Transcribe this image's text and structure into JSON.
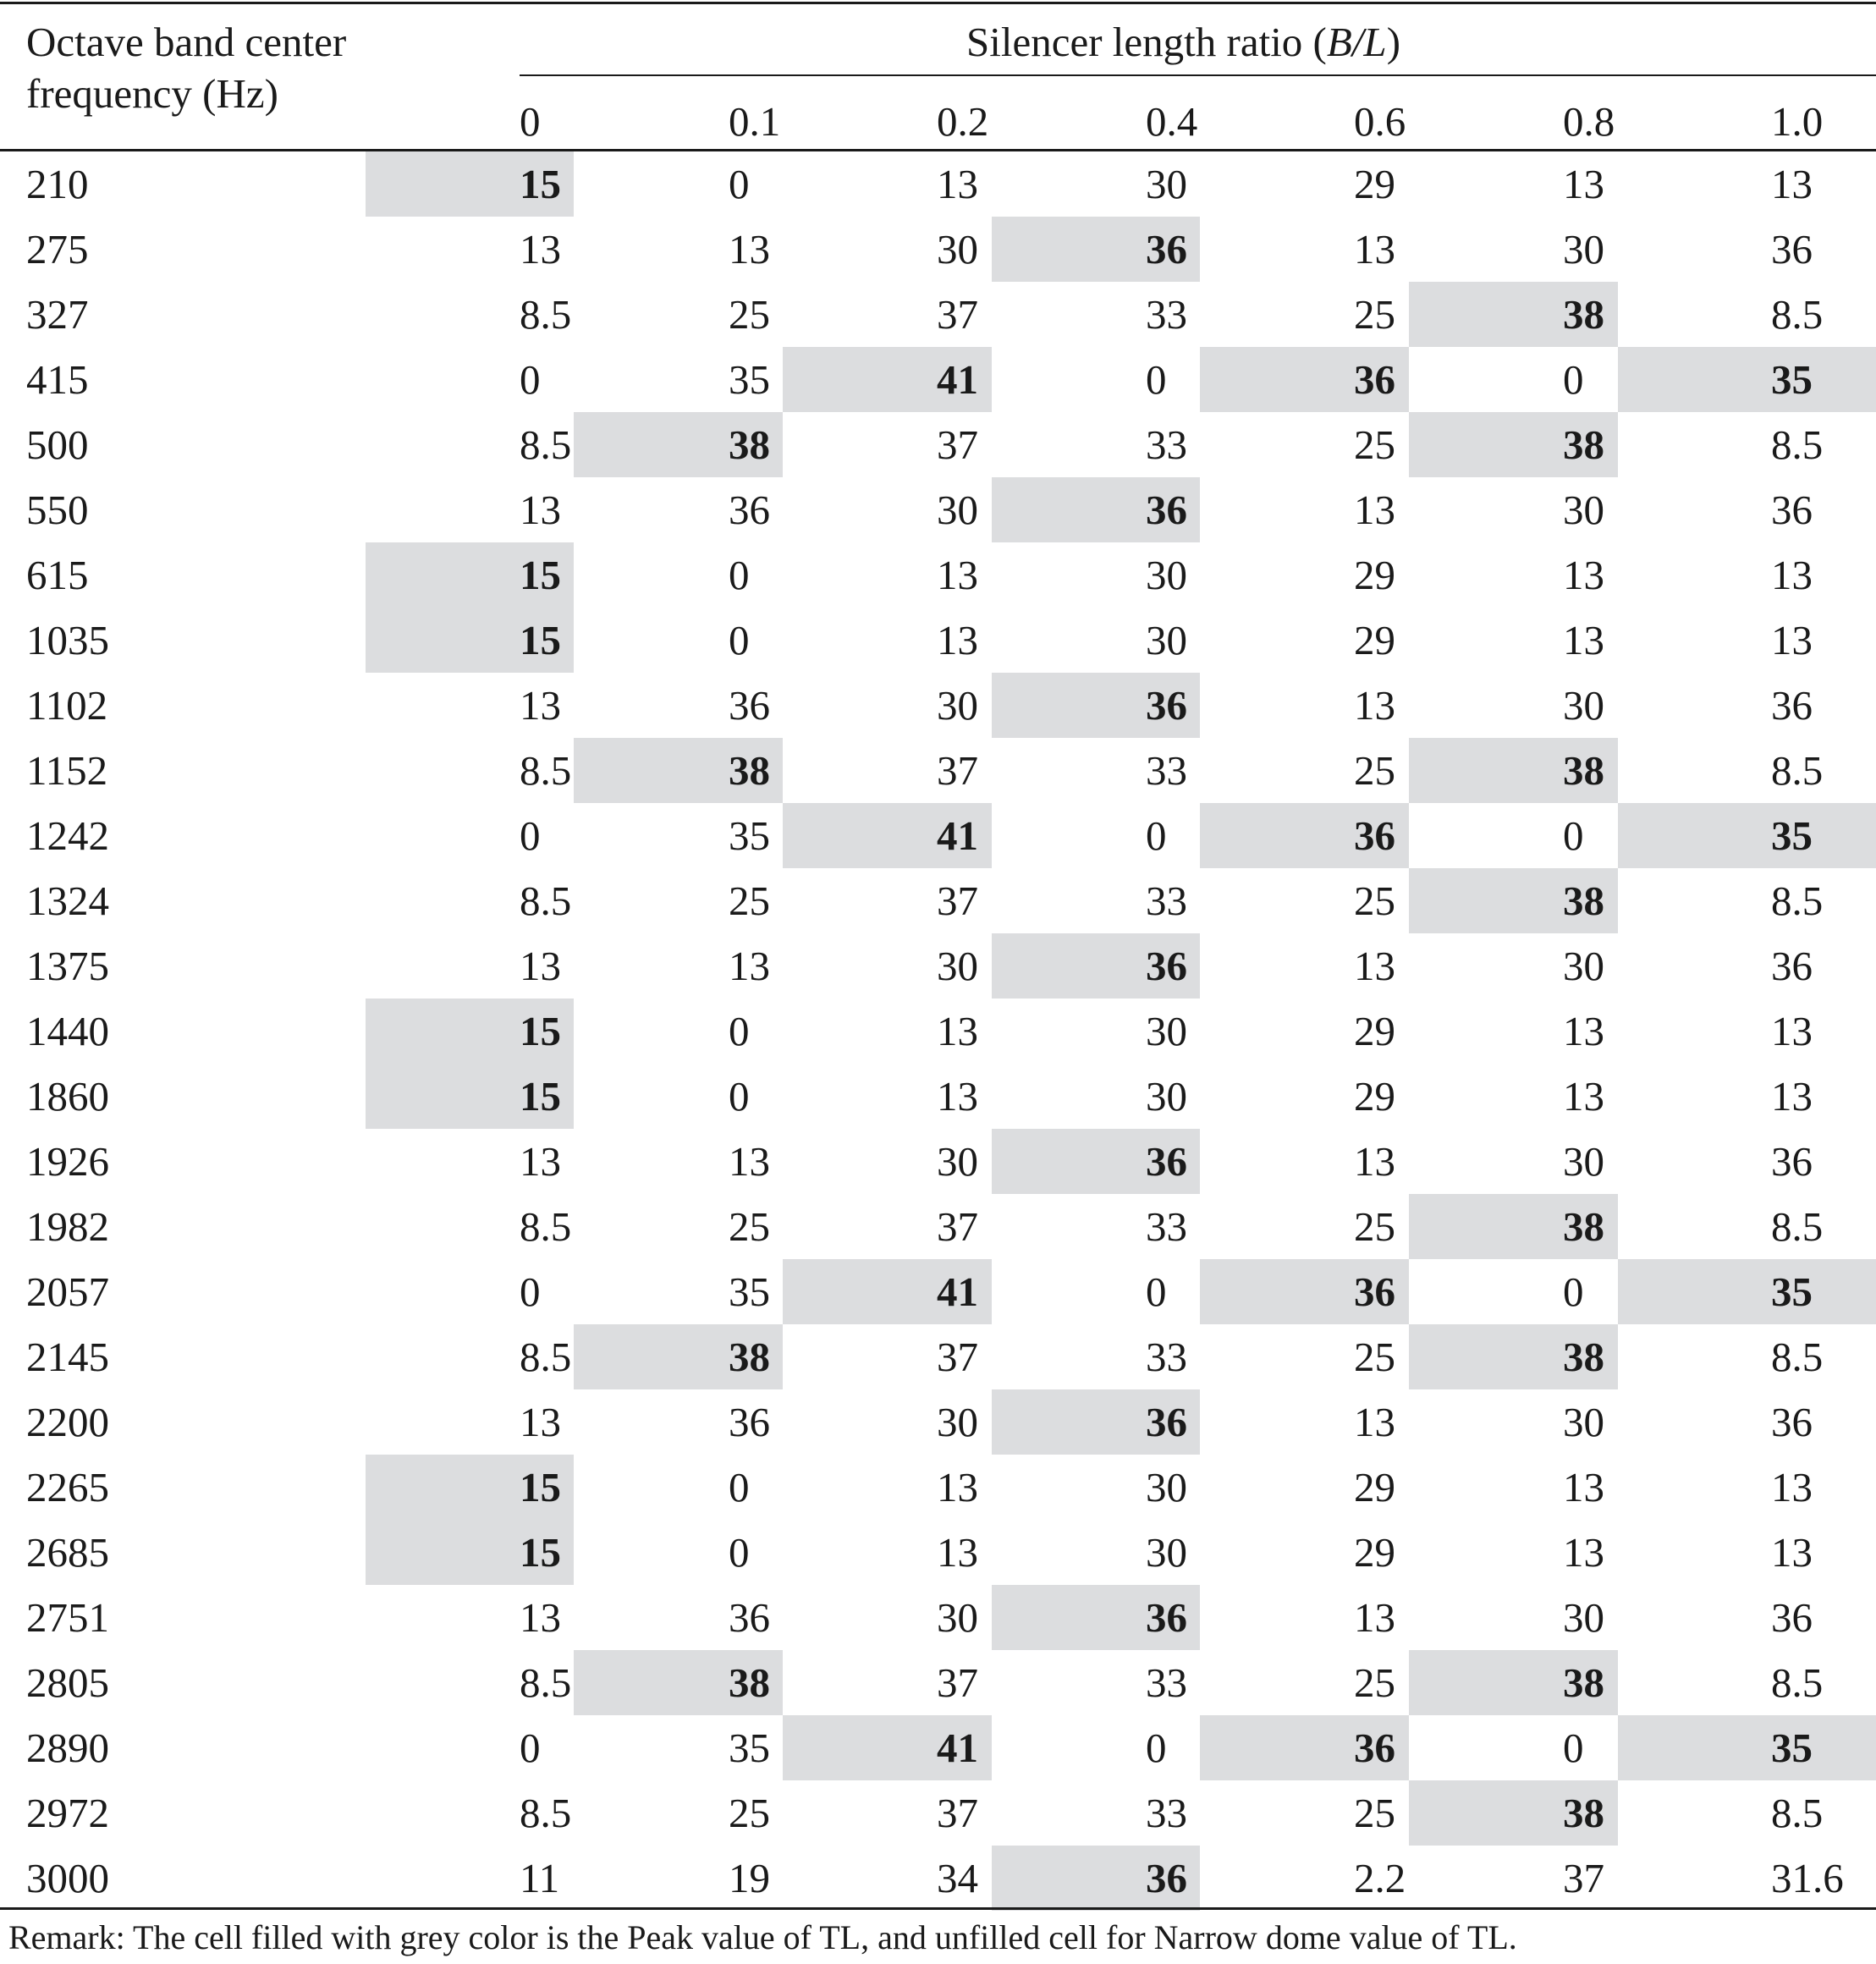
{
  "header": {
    "first_col_line1": "Octave band center",
    "first_col_line2": "frequency (Hz)",
    "group_label_prefix": "Silencer length ratio (",
    "group_label_italic": "B/L",
    "group_label_suffix": ")",
    "ratios": [
      "0",
      "0.1",
      "0.2",
      "0.4",
      "0.6",
      "0.8",
      "1.0"
    ]
  },
  "rows": [
    {
      "freq": "210",
      "values": [
        "15",
        "0",
        "13",
        "30",
        "29",
        "13",
        "13"
      ],
      "peak": [
        0
      ]
    },
    {
      "freq": "275",
      "values": [
        "13",
        "13",
        "30",
        "36",
        "13",
        "30",
        "36"
      ],
      "peak": [
        3
      ]
    },
    {
      "freq": "327",
      "values": [
        "8.5",
        "25",
        "37",
        "33",
        "25",
        "38",
        "8.5"
      ],
      "peak": [
        5
      ]
    },
    {
      "freq": "415",
      "values": [
        "0",
        "35",
        "41",
        "0",
        "36",
        "0",
        "35"
      ],
      "peak": [
        2,
        4,
        6
      ]
    },
    {
      "freq": "500",
      "values": [
        "8.5",
        "38",
        "37",
        "33",
        "25",
        "38",
        "8.5"
      ],
      "peak": [
        1,
        5
      ]
    },
    {
      "freq": "550",
      "values": [
        "13",
        "36",
        "30",
        "36",
        "13",
        "30",
        "36"
      ],
      "peak": [
        3
      ]
    },
    {
      "freq": "615",
      "values": [
        "15",
        "0",
        "13",
        "30",
        "29",
        "13",
        "13"
      ],
      "peak": [
        0
      ]
    },
    {
      "freq": "1035",
      "values": [
        "15",
        "0",
        "13",
        "30",
        "29",
        "13",
        "13"
      ],
      "peak": [
        0
      ]
    },
    {
      "freq": "1102",
      "values": [
        "13",
        "36",
        "30",
        "36",
        "13",
        "30",
        "36"
      ],
      "peak": [
        3
      ]
    },
    {
      "freq": "1152",
      "values": [
        "8.5",
        "38",
        "37",
        "33",
        "25",
        "38",
        "8.5"
      ],
      "peak": [
        1,
        5
      ]
    },
    {
      "freq": "1242",
      "values": [
        "0",
        "35",
        "41",
        "0",
        "36",
        "0",
        "35"
      ],
      "peak": [
        2,
        4,
        6
      ]
    },
    {
      "freq": "1324",
      "values": [
        "8.5",
        "25",
        "37",
        "33",
        "25",
        "38",
        "8.5"
      ],
      "peak": [
        5
      ]
    },
    {
      "freq": "1375",
      "values": [
        "13",
        "13",
        "30",
        "36",
        "13",
        "30",
        "36"
      ],
      "peak": [
        3
      ]
    },
    {
      "freq": "1440",
      "values": [
        "15",
        "0",
        "13",
        "30",
        "29",
        "13",
        "13"
      ],
      "peak": [
        0
      ]
    },
    {
      "freq": "1860",
      "values": [
        "15",
        "0",
        "13",
        "30",
        "29",
        "13",
        "13"
      ],
      "peak": [
        0
      ]
    },
    {
      "freq": "1926",
      "values": [
        "13",
        "13",
        "30",
        "36",
        "13",
        "30",
        "36"
      ],
      "peak": [
        3
      ]
    },
    {
      "freq": "1982",
      "values": [
        "8.5",
        "25",
        "37",
        "33",
        "25",
        "38",
        "8.5"
      ],
      "peak": [
        5
      ]
    },
    {
      "freq": "2057",
      "values": [
        "0",
        "35",
        "41",
        "0",
        "36",
        "0",
        "35"
      ],
      "peak": [
        2,
        4,
        6
      ]
    },
    {
      "freq": "2145",
      "values": [
        "8.5",
        "38",
        "37",
        "33",
        "25",
        "38",
        "8.5"
      ],
      "peak": [
        1,
        5
      ]
    },
    {
      "freq": "2200",
      "values": [
        "13",
        "36",
        "30",
        "36",
        "13",
        "30",
        "36"
      ],
      "peak": [
        3
      ]
    },
    {
      "freq": "2265",
      "values": [
        "15",
        "0",
        "13",
        "30",
        "29",
        "13",
        "13"
      ],
      "peak": [
        0
      ]
    },
    {
      "freq": "2685",
      "values": [
        "15",
        "0",
        "13",
        "30",
        "29",
        "13",
        "13"
      ],
      "peak": [
        0
      ]
    },
    {
      "freq": "2751",
      "values": [
        "13",
        "36",
        "30",
        "36",
        "13",
        "30",
        "36"
      ],
      "peak": [
        3
      ]
    },
    {
      "freq": "2805",
      "values": [
        "8.5",
        "38",
        "37",
        "33",
        "25",
        "38",
        "8.5"
      ],
      "peak": [
        1,
        5
      ]
    },
    {
      "freq": "2890",
      "values": [
        "0",
        "35",
        "41",
        "0",
        "36",
        "0",
        "35"
      ],
      "peak": [
        2,
        4,
        6
      ]
    },
    {
      "freq": "2972",
      "values": [
        "8.5",
        "25",
        "37",
        "33",
        "25",
        "38",
        "8.5"
      ],
      "peak": [
        5
      ]
    },
    {
      "freq": "3000",
      "values": [
        "11",
        "19",
        "34",
        "36",
        "2.2",
        "37",
        "31.6"
      ],
      "peak": [
        3
      ]
    }
  ],
  "remark": "Remark: The cell filled with grey color is the Peak value of TL, and unfilled cell for Narrow dome value of TL.",
  "colors": {
    "peak_fill": "#dcdddf",
    "text": "#1a1a1a",
    "background": "#ffffff"
  }
}
